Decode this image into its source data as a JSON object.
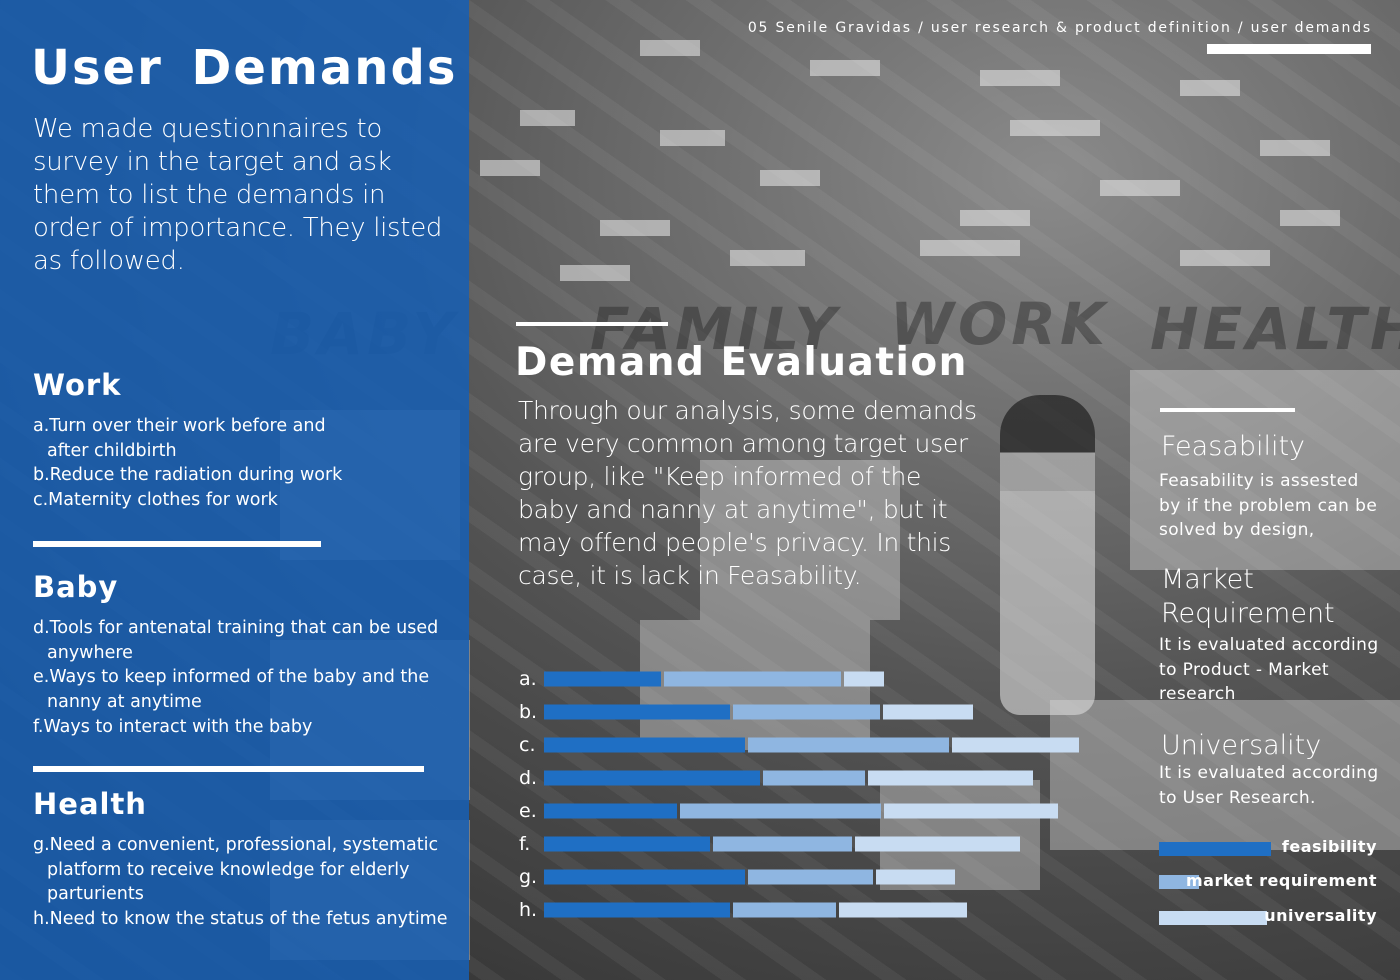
{
  "header": {
    "breadcrumb": "05 Senile Gravidas / user research &  product definition / user demands"
  },
  "left_panel": {
    "title": "User Demands",
    "intro": "We made questionnaires to survey in the target and ask them to list the demands in order of importance. They listed as followed.",
    "categories": [
      {
        "title": "Work",
        "items": [
          "a.Turn over their work before and after childbirth",
          "b.Reduce the radiation during work",
          "c.Maternity clothes for work"
        ]
      },
      {
        "title": "Baby",
        "items": [
          "d.Tools for antenatal training that can be used anywhere",
          "e.Ways to keep informed of the baby and the nanny at anytime",
          "f.Ways to interact with the baby"
        ]
      },
      {
        "title": "Health",
        "items": [
          "g.Need a convenient, professional, systematic platform to  receive knowledge  for elderly parturients",
          "h.Need to know the status of the fetus anytime"
        ]
      }
    ]
  },
  "evaluation": {
    "title": "Demand Evaluation",
    "body": "Through our analysis, some demands are very common among target user group, like \"Keep informed of the baby and nanny at anytime\",  but it may offend people's privacy.  In this case, it is lack in Feasability."
  },
  "criteria": [
    {
      "title": "Feasability",
      "desc": "Feasability is assested by if the problem can be solved  by design,"
    },
    {
      "title": "Market Requirement",
      "desc": "It is evaluated according to  Product - Market research"
    },
    {
      "title": "Universality",
      "desc": "It is evaluated according to User Research."
    }
  ],
  "colors": {
    "panel_blue": "#1f63b6",
    "feasibility": "#1f6fc4",
    "market_requirement": "#8fb6e1",
    "universality": "#c8dcf2"
  },
  "chart_data": {
    "type": "bar",
    "orientation": "horizontal",
    "stacked": true,
    "categories": [
      "a.",
      "b.",
      "c.",
      "d.",
      "e.",
      "f.",
      "g.",
      "h."
    ],
    "series": [
      {
        "name": "feasibility",
        "values": [
          117,
          186,
          201,
          216,
          133,
          166,
          201,
          186
        ]
      },
      {
        "name": "market requirement",
        "values": [
          177,
          147,
          201,
          102,
          201,
          139,
          125,
          103
        ]
      },
      {
        "name": "universality",
        "values": [
          40,
          90,
          127,
          165,
          174,
          165,
          79,
          128
        ]
      }
    ],
    "legend": "right"
  },
  "legend": {
    "items": [
      "feasibility",
      "market requirement",
      "universality"
    ]
  }
}
